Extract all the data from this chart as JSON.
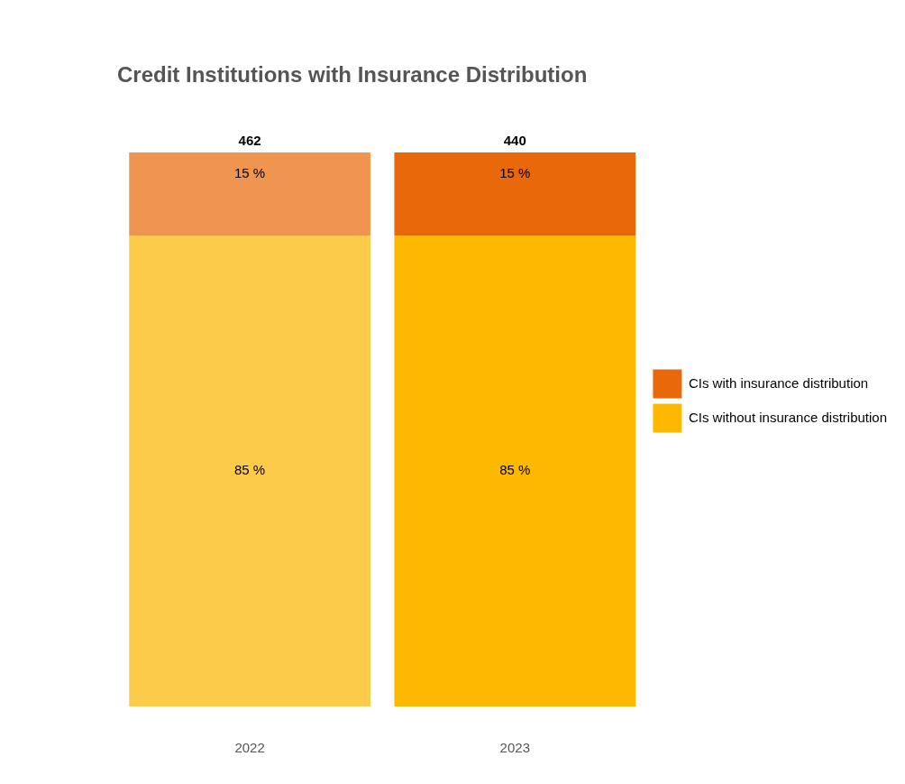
{
  "chart_data": {
    "type": "bar",
    "title": "Credit Institutions with Insurance Distribution",
    "categories": [
      "2022",
      "2023"
    ],
    "stacked": true,
    "legend": "right",
    "series": [
      {
        "name": "CIs without insurance distribution",
        "color": "#fdb900",
        "colors": [
          "#fccb4a",
          "#fdb900"
        ],
        "values": [
          85,
          85
        ],
        "value_labels": [
          "85 %",
          "85 %"
        ]
      },
      {
        "name": "CIs with insurance distribution",
        "color": "#e8680a",
        "colors": [
          "#f0954f",
          "#e8680a"
        ],
        "values": [
          15,
          15
        ],
        "value_labels": [
          "15 %",
          "15 %"
        ]
      }
    ],
    "annotations": [
      {
        "text": "462",
        "x": "2022",
        "y": 100
      },
      {
        "text": "440",
        "x": "2023",
        "y": 100
      }
    ]
  }
}
